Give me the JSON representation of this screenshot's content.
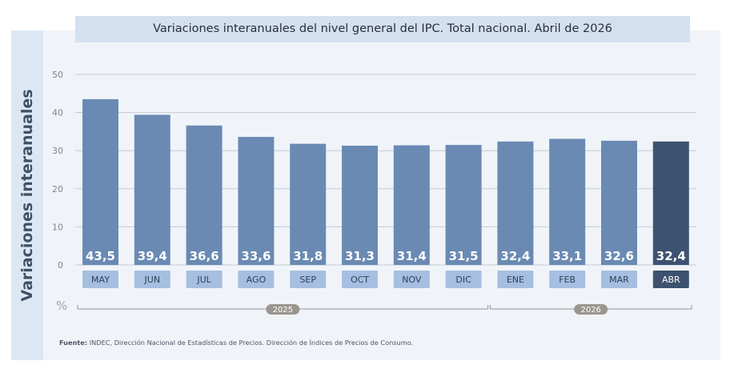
{
  "title": "Variaciones interanuales del nivel general del IPC. Total nacional. Abril de 2026",
  "y_axis_title": "Variaciones interanuales",
  "unit_label": "%",
  "source_label": "Fuente:",
  "source_text": "INDEC, Dirección Nacional de Estadísticas de Precios. Dirección de Índices de Precios de Consumo.",
  "colors": {
    "bar": "#6a8ab3",
    "bar_highlight": "#3d5270",
    "month_box": "#a6bfe0",
    "month_box_highlight": "#3d5270",
    "grid": "#c3cad4",
    "year_badge": "#9a968f"
  },
  "chart_data": {
    "type": "bar",
    "title": "Variaciones interanuales del nivel general del IPC. Total nacional. Abril de 2026",
    "xlabel": "",
    "ylabel": "Variaciones interanuales",
    "unit": "%",
    "categories": [
      "MAY",
      "JUN",
      "JUL",
      "AGO",
      "SEP",
      "OCT",
      "NOV",
      "DIC",
      "ENE",
      "FEB",
      "MAR",
      "ABR"
    ],
    "values": [
      43.5,
      39.4,
      36.6,
      33.6,
      31.8,
      31.3,
      31.4,
      31.5,
      32.4,
      33.1,
      32.6,
      32.4
    ],
    "value_labels": [
      "43,5",
      "39,4",
      "36,6",
      "33,6",
      "31,8",
      "31,3",
      "31,4",
      "31,5",
      "32,4",
      "33,1",
      "32,6",
      "32,4"
    ],
    "ylim": [
      0,
      50
    ],
    "yticks": [
      0,
      10,
      20,
      30,
      40,
      50
    ],
    "grid": true,
    "highlight_category": "ABR",
    "year_groups": [
      {
        "label": "2025",
        "categories": [
          "MAY",
          "JUN",
          "JUL",
          "AGO",
          "SEP",
          "OCT",
          "NOV",
          "DIC"
        ]
      },
      {
        "label": "2026",
        "categories": [
          "ENE",
          "FEB",
          "MAR",
          "ABR"
        ]
      }
    ]
  }
}
